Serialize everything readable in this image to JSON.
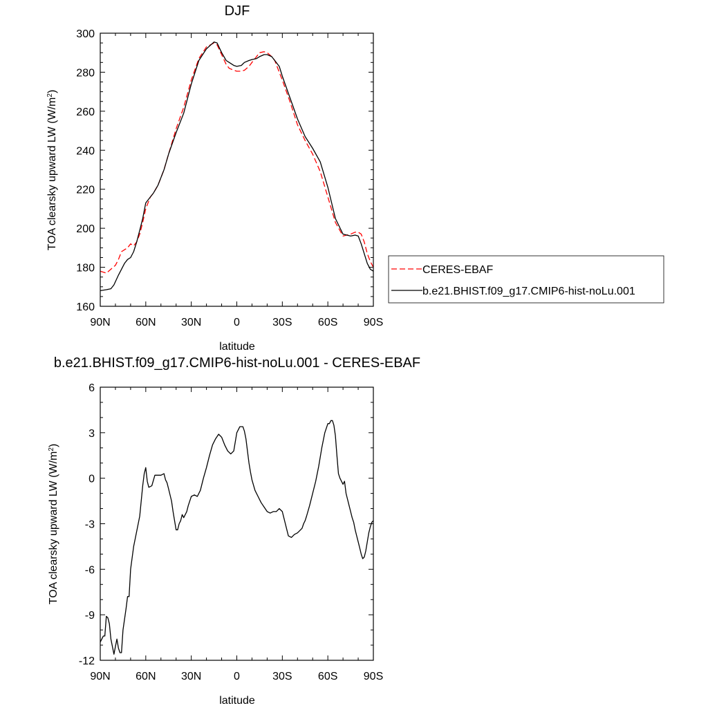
{
  "chart_data": [
    {
      "type": "line",
      "title": "DJF",
      "xlabel": "latitude",
      "ylabel": "TOA clearsky upward LW (W/m",
      "ylabel_sup": "2",
      "ylabel_tail": ")",
      "xlim": [
        90,
        -90
      ],
      "ylim": [
        160,
        300
      ],
      "x_ticks": [
        90,
        60,
        30,
        0,
        -30,
        -60,
        -90
      ],
      "x_tick_labels": [
        "90N",
        "60N",
        "30N",
        "0",
        "30S",
        "60S",
        "90S"
      ],
      "y_ticks": [
        160,
        180,
        200,
        220,
        240,
        260,
        280,
        300
      ],
      "y_tick_labels": [
        "160",
        "180",
        "200",
        "220",
        "240",
        "260",
        "280",
        "300"
      ],
      "legend_position": "right",
      "series": [
        {
          "name": "CERES-EBAF",
          "color": "#ff0000",
          "dash": "dashed",
          "x": [
            90,
            86,
            83,
            80,
            78,
            76,
            74,
            72,
            70,
            68,
            66,
            64,
            62,
            60,
            57,
            55,
            52,
            48,
            45,
            40,
            35,
            30,
            25,
            20,
            15,
            13,
            10,
            7,
            5,
            2,
            0,
            -3,
            -5,
            -8,
            -10,
            -13,
            -15,
            -18,
            -20,
            -23,
            -25,
            -28,
            -30,
            -35,
            -40,
            -45,
            -50,
            -55,
            -60,
            -65,
            -70,
            -75,
            -78,
            -80,
            -82,
            -84,
            -86,
            -88,
            -90
          ],
          "y": [
            178,
            177,
            179,
            181,
            184,
            188,
            189,
            190,
            192,
            191,
            193,
            197,
            203,
            210,
            216,
            218,
            222,
            230,
            238,
            251,
            262,
            276,
            287,
            293,
            295,
            294,
            289,
            284,
            282,
            281,
            280.5,
            280.5,
            281,
            283,
            285,
            288,
            290,
            290.5,
            290,
            288,
            286,
            280,
            276,
            265,
            253,
            245,
            238,
            229,
            216,
            203,
            196,
            197,
            198,
            198,
            197,
            193,
            187,
            183,
            180
          ]
        },
        {
          "name": "b.e21.BHIST.f09_g17.CMIP6-hist-noLu.001",
          "color": "#000000",
          "dash": "solid",
          "x": [
            90,
            86,
            83,
            81,
            78,
            76,
            74,
            72,
            70,
            68,
            66,
            64,
            62,
            60,
            57,
            55,
            52,
            48,
            45,
            40,
            35,
            30,
            25,
            20,
            15,
            13,
            10,
            7,
            5,
            2,
            0,
            -3,
            -5,
            -8,
            -10,
            -13,
            -15,
            -18,
            -20,
            -23,
            -25,
            -28,
            -30,
            -35,
            -40,
            -45,
            -50,
            -55,
            -60,
            -65,
            -70,
            -75,
            -78,
            -80,
            -82,
            -84,
            -86,
            -88,
            -90
          ],
          "y": [
            168,
            168.5,
            169,
            171,
            176,
            179,
            182,
            184,
            185,
            188,
            193,
            199,
            205,
            213,
            216,
            218,
            222,
            230,
            238,
            249,
            259,
            274,
            286,
            292,
            295.5,
            295,
            290,
            286,
            285,
            283.5,
            283,
            283.5,
            285,
            286,
            286.5,
            287,
            288,
            289,
            289,
            288,
            286,
            283,
            278,
            267,
            256,
            247,
            241,
            234,
            221,
            205,
            197,
            196,
            196.5,
            196,
            192,
            187,
            182,
            179,
            178
          ]
        }
      ]
    },
    {
      "type": "line",
      "title": "b.e21.BHIST.f09_g17.CMIP6-hist-noLu.001 - CERES-EBAF",
      "xlabel": "latitude",
      "ylabel": "TOA clearsky upward LW (W/m",
      "ylabel_sup": "2",
      "ylabel_tail": ")",
      "xlim": [
        90,
        -90
      ],
      "ylim": [
        -12,
        6
      ],
      "x_ticks": [
        90,
        60,
        30,
        0,
        -30,
        -60,
        -90
      ],
      "x_tick_labels": [
        "90N",
        "60N",
        "30N",
        "0",
        "30S",
        "60S",
        "90S"
      ],
      "y_ticks": [
        -12,
        -9,
        -6,
        -3,
        0,
        3,
        6
      ],
      "y_tick_labels": [
        "-12",
        "-9",
        "-6",
        "-3",
        "0",
        "3",
        "6"
      ],
      "series": [
        {
          "color": "#000000",
          "x": [
            90,
            88,
            87,
            86,
            85,
            84,
            83,
            81,
            80,
            79,
            78,
            77,
            76,
            75,
            73,
            72,
            71,
            70,
            68,
            66,
            64,
            62,
            61,
            60,
            59,
            58,
            56,
            54,
            52,
            50,
            48,
            47,
            46,
            45,
            43,
            42,
            41,
            40,
            39,
            38,
            37,
            36,
            35,
            33,
            32,
            31,
            30,
            28,
            26,
            24,
            22,
            20,
            18,
            16,
            14,
            12,
            10,
            8,
            6,
            4,
            2,
            1,
            0,
            -2,
            -4,
            -5,
            -6,
            -7,
            -8,
            -9,
            -10,
            -12,
            -14,
            -16,
            -18,
            -20,
            -22,
            -24,
            -26,
            -28,
            -30,
            -31,
            -32,
            -33,
            -34,
            -36,
            -38,
            -40,
            -42,
            -43,
            -44,
            -45,
            -46,
            -48,
            -50,
            -52,
            -54,
            -56,
            -58,
            -60,
            -61,
            -62,
            -63,
            -64,
            -65,
            -66,
            -67,
            -68,
            -69,
            -70,
            -71,
            -72,
            -73,
            -74,
            -75,
            -76,
            -77,
            -78,
            -79,
            -80,
            -81,
            -82,
            -83,
            -84,
            -85,
            -86,
            -87,
            -88,
            -89,
            -90
          ],
          "y": [
            -10.8,
            -10.4,
            -10.4,
            -9.1,
            -9.2,
            -9.6,
            -10.6,
            -11.6,
            -11.1,
            -10.6,
            -11.2,
            -11.5,
            -11.5,
            -10,
            -8.6,
            -7.8,
            -7.8,
            -6,
            -4.5,
            -3.5,
            -2.5,
            -0.5,
            0.3,
            0.7,
            -0.2,
            -0.6,
            -0.5,
            0.2,
            0.2,
            0.2,
            0.3,
            -0.1,
            -0.3,
            -0.7,
            -1.5,
            -2.2,
            -2.8,
            -3.4,
            -3.4,
            -3,
            -2.8,
            -2.4,
            -2.6,
            -2.2,
            -1.8,
            -1.5,
            -1.2,
            -1.1,
            -1.2,
            -0.8,
            0,
            0.7,
            1.5,
            2.2,
            2.6,
            2.9,
            2.7,
            2.2,
            1.8,
            1.6,
            1.8,
            2.4,
            3.0,
            3.4,
            3.4,
            3.1,
            2.6,
            1.8,
            1.0,
            0.4,
            -0.1,
            -0.8,
            -1.2,
            -1.6,
            -1.9,
            -2.2,
            -2.3,
            -2.2,
            -2.2,
            -2.0,
            -2.2,
            -2.6,
            -3.0,
            -3.4,
            -3.8,
            -3.9,
            -3.7,
            -3.6,
            -3.4,
            -3.3,
            -3.0,
            -2.8,
            -2.5,
            -1.8,
            -1.0,
            -0.2,
            0.8,
            2.0,
            3.0,
            3.6,
            3.6,
            3.8,
            3.8,
            3.5,
            2.8,
            1.5,
            0.3,
            0.0,
            -0.2,
            -0.4,
            -0.2,
            -1.0,
            -1.4,
            -1.8,
            -2.2,
            -2.6,
            -2.9,
            -3.4,
            -3.8,
            -4.2,
            -4.6,
            -5.0,
            -5.3,
            -5.2,
            -4.8,
            -4.2,
            -3.6,
            -3.2,
            -2.9,
            -2.8
          ]
        }
      ]
    }
  ]
}
